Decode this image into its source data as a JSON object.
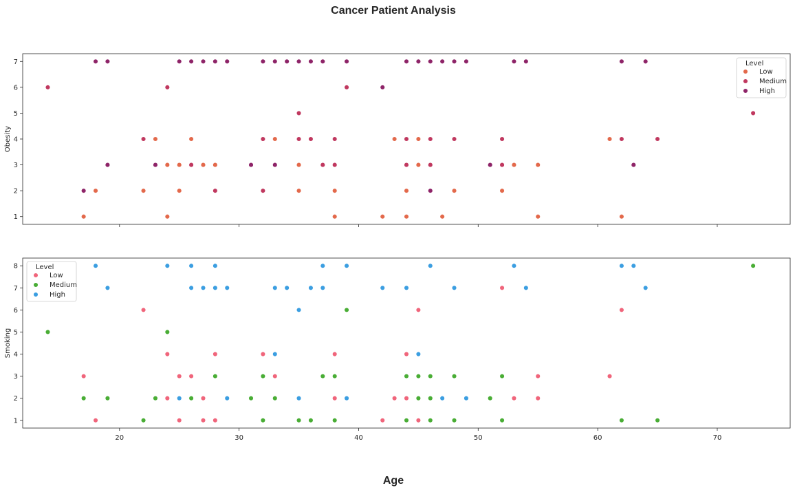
{
  "figure_title": "Cancer Patient Analysis",
  "colors": {
    "obesity": {
      "Low": "#e3694b",
      "Medium": "#c0385f",
      "High": "#8e2468"
    },
    "smoking": {
      "Low": "#f0657b",
      "Medium": "#49ad35",
      "High": "#3b9ee1"
    }
  },
  "chart_data": [
    {
      "type": "scatter",
      "title": "",
      "xlabel": "",
      "ylabel": "Obesity",
      "xlim": [
        11.9,
        76.1
      ],
      "ylim": [
        0.7,
        7.3
      ],
      "xticks": [
        20,
        30,
        40,
        50,
        60,
        70
      ],
      "show_xticklabels": false,
      "yticks": [
        1,
        2,
        3,
        4,
        5,
        6,
        7
      ],
      "grid": false,
      "legend": {
        "title": "Level",
        "placement": "top-right",
        "entries": [
          "Low",
          "Medium",
          "High"
        ]
      },
      "series": [
        {
          "name": "Low",
          "points": [
            [
              17,
              1
            ],
            [
              18,
              2
            ],
            [
              22,
              2
            ],
            [
              22,
              4
            ],
            [
              23,
              4
            ],
            [
              24,
              1
            ],
            [
              24,
              3
            ],
            [
              25,
              2
            ],
            [
              25,
              3
            ],
            [
              26,
              4
            ],
            [
              27,
              3
            ],
            [
              28,
              2
            ],
            [
              28,
              3
            ],
            [
              33,
              4
            ],
            [
              35,
              2
            ],
            [
              35,
              3
            ],
            [
              38,
              1
            ],
            [
              38,
              2
            ],
            [
              42,
              1
            ],
            [
              43,
              4
            ],
            [
              44,
              1
            ],
            [
              44,
              2
            ],
            [
              45,
              3
            ],
            [
              45,
              4
            ],
            [
              47,
              1
            ],
            [
              48,
              2
            ],
            [
              52,
              2
            ],
            [
              53,
              3
            ],
            [
              55,
              1
            ],
            [
              55,
              3
            ],
            [
              61,
              4
            ],
            [
              62,
              1
            ]
          ]
        },
        {
          "name": "Medium",
          "points": [
            [
              14,
              6
            ],
            [
              17,
              2
            ],
            [
              19,
              3
            ],
            [
              22,
              4
            ],
            [
              23,
              3
            ],
            [
              24,
              6
            ],
            [
              26,
              3
            ],
            [
              28,
              2
            ],
            [
              32,
              2
            ],
            [
              32,
              4
            ],
            [
              35,
              4
            ],
            [
              35,
              5
            ],
            [
              36,
              4
            ],
            [
              37,
              3
            ],
            [
              38,
              3
            ],
            [
              38,
              4
            ],
            [
              39,
              6
            ],
            [
              44,
              3
            ],
            [
              44,
              4
            ],
            [
              46,
              2
            ],
            [
              46,
              3
            ],
            [
              46,
              4
            ],
            [
              48,
              4
            ],
            [
              52,
              3
            ],
            [
              52,
              4
            ],
            [
              62,
              4
            ],
            [
              65,
              4
            ],
            [
              73,
              5
            ]
          ]
        },
        {
          "name": "High",
          "points": [
            [
              17,
              2
            ],
            [
              18,
              7
            ],
            [
              19,
              7
            ],
            [
              19,
              3
            ],
            [
              23,
              3
            ],
            [
              25,
              7
            ],
            [
              26,
              7
            ],
            [
              27,
              7
            ],
            [
              28,
              7
            ],
            [
              29,
              7
            ],
            [
              31,
              3
            ],
            [
              32,
              7
            ],
            [
              33,
              3
            ],
            [
              33,
              7
            ],
            [
              34,
              7
            ],
            [
              35,
              7
            ],
            [
              36,
              7
            ],
            [
              37,
              7
            ],
            [
              39,
              7
            ],
            [
              42,
              6
            ],
            [
              44,
              7
            ],
            [
              45,
              7
            ],
            [
              46,
              7
            ],
            [
              46,
              2
            ],
            [
              47,
              7
            ],
            [
              48,
              7
            ],
            [
              49,
              7
            ],
            [
              51,
              3
            ],
            [
              53,
              7
            ],
            [
              54,
              7
            ],
            [
              62,
              7
            ],
            [
              63,
              3
            ],
            [
              64,
              7
            ]
          ]
        }
      ]
    },
    {
      "type": "scatter",
      "title": "",
      "xlabel": "Age",
      "ylabel": "Smoking",
      "xlim": [
        11.9,
        76.1
      ],
      "ylim": [
        0.65,
        8.35
      ],
      "xticks": [
        20,
        30,
        40,
        50,
        60,
        70
      ],
      "show_xticklabels": true,
      "yticks": [
        1,
        2,
        3,
        4,
        5,
        6,
        7,
        8
      ],
      "grid": false,
      "legend": {
        "title": "Level",
        "placement": "top-left",
        "entries": [
          "Low",
          "Medium",
          "High"
        ]
      },
      "series": [
        {
          "name": "Low",
          "points": [
            [
              17,
              3
            ],
            [
              18,
              1
            ],
            [
              22,
              6
            ],
            [
              24,
              2
            ],
            [
              24,
              4
            ],
            [
              25,
              1
            ],
            [
              25,
              3
            ],
            [
              26,
              3
            ],
            [
              27,
              1
            ],
            [
              27,
              2
            ],
            [
              28,
              1
            ],
            [
              28,
              4
            ],
            [
              32,
              4
            ],
            [
              33,
              3
            ],
            [
              38,
              2
            ],
            [
              38,
              4
            ],
            [
              42,
              1
            ],
            [
              43,
              2
            ],
            [
              44,
              2
            ],
            [
              44,
              4
            ],
            [
              45,
              1
            ],
            [
              45,
              6
            ],
            [
              52,
              7
            ],
            [
              53,
              2
            ],
            [
              55,
              2
            ],
            [
              55,
              3
            ],
            [
              61,
              3
            ],
            [
              62,
              6
            ]
          ]
        },
        {
          "name": "Medium",
          "points": [
            [
              14,
              5
            ],
            [
              17,
              2
            ],
            [
              19,
              2
            ],
            [
              22,
              1
            ],
            [
              23,
              2
            ],
            [
              24,
              5
            ],
            [
              26,
              2
            ],
            [
              28,
              3
            ],
            [
              31,
              2
            ],
            [
              32,
              1
            ],
            [
              32,
              3
            ],
            [
              33,
              2
            ],
            [
              35,
              1
            ],
            [
              36,
              1
            ],
            [
              37,
              3
            ],
            [
              38,
              1
            ],
            [
              38,
              3
            ],
            [
              39,
              6
            ],
            [
              44,
              1
            ],
            [
              44,
              3
            ],
            [
              45,
              2
            ],
            [
              45,
              3
            ],
            [
              46,
              1
            ],
            [
              46,
              2
            ],
            [
              46,
              3
            ],
            [
              48,
              1
            ],
            [
              48,
              3
            ],
            [
              51,
              2
            ],
            [
              52,
              1
            ],
            [
              52,
              3
            ],
            [
              62,
              1
            ],
            [
              65,
              1
            ],
            [
              73,
              8
            ]
          ]
        },
        {
          "name": "High",
          "points": [
            [
              18,
              8
            ],
            [
              19,
              7
            ],
            [
              24,
              8
            ],
            [
              25,
              2
            ],
            [
              26,
              7
            ],
            [
              26,
              8
            ],
            [
              27,
              7
            ],
            [
              28,
              7
            ],
            [
              28,
              8
            ],
            [
              29,
              2
            ],
            [
              29,
              7
            ],
            [
              33,
              4
            ],
            [
              33,
              7
            ],
            [
              34,
              7
            ],
            [
              35,
              2
            ],
            [
              35,
              6
            ],
            [
              36,
              7
            ],
            [
              37,
              7
            ],
            [
              37,
              8
            ],
            [
              39,
              2
            ],
            [
              39,
              8
            ],
            [
              42,
              7
            ],
            [
              44,
              7
            ],
            [
              45,
              4
            ],
            [
              46,
              8
            ],
            [
              47,
              2
            ],
            [
              48,
              7
            ],
            [
              49,
              2
            ],
            [
              53,
              8
            ],
            [
              54,
              7
            ],
            [
              62,
              8
            ],
            [
              63,
              8
            ],
            [
              64,
              7
            ]
          ]
        }
      ]
    }
  ]
}
